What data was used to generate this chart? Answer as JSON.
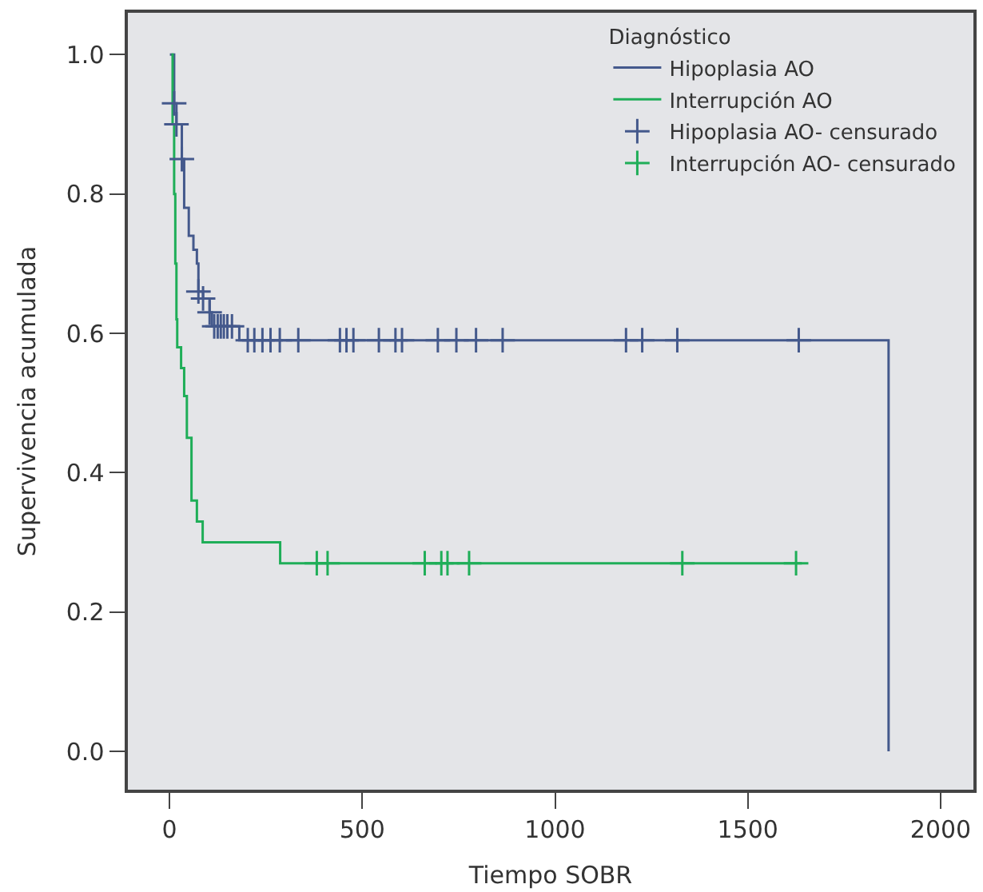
{
  "chart_data": {
    "type": "step",
    "xlabel": "Tiempo SOBR",
    "ylabel": "Supervivencia acumulada",
    "legend_title": "Diagnóstico",
    "legend": "top right",
    "grid": false,
    "xlim": [
      -108,
      2085
    ],
    "ylim": [
      -0.055,
      1.06
    ],
    "xticks": [
      0,
      500,
      1000,
      1500,
      2000
    ],
    "yticks": [
      {
        "value": 0,
        "label": "0.0"
      },
      {
        "value": 0.2,
        "label": "0.2"
      },
      {
        "value": 0.4,
        "label": "0.4"
      },
      {
        "value": 0.6,
        "label": "0.6"
      },
      {
        "value": 0.8,
        "label": "0.8"
      },
      {
        "value": 1,
        "label": "1.0"
      }
    ],
    "series": [
      {
        "name": "Hipoplasia AO",
        "color": "#44598c",
        "marker": "none",
        "x": [
          1,
          12,
          18,
          32,
          38,
          50,
          62,
          71,
          75,
          87,
          104,
          110,
          181,
          1865
        ],
        "values": [
          1.0,
          0.93,
          0.9,
          0.85,
          0.78,
          0.74,
          0.72,
          0.7,
          0.66,
          0.65,
          0.63,
          0.61,
          0.59,
          0.0
        ]
      },
      {
        "name": "Interrupción AO",
        "color": "#1fae58",
        "marker": "none",
        "x": [
          5,
          8,
          12,
          15,
          18,
          20,
          30,
          38,
          45,
          57,
          71,
          86,
          287,
          1640
        ],
        "values": [
          1.0,
          0.9,
          0.8,
          0.7,
          0.62,
          0.58,
          0.55,
          0.51,
          0.45,
          0.36,
          0.33,
          0.3,
          0.27,
          0.27
        ]
      },
      {
        "name": "Hipoplasia AO- censurado",
        "type": "scatter",
        "color": "#44598c",
        "marker": "cross",
        "x": [
          12,
          18,
          32,
          75,
          87,
          104,
          116,
          125,
          133,
          141,
          150,
          162,
          203,
          220,
          241,
          262,
          286,
          334,
          442,
          459,
          477,
          543,
          586,
          603,
          696,
          744,
          795,
          864,
          1184,
          1226,
          1317,
          1632
        ],
        "values": [
          0.93,
          0.9,
          0.85,
          0.66,
          0.65,
          0.63,
          0.61,
          0.61,
          0.61,
          0.61,
          0.61,
          0.61,
          0.59,
          0.59,
          0.59,
          0.59,
          0.59,
          0.59,
          0.59,
          0.59,
          0.59,
          0.59,
          0.59,
          0.59,
          0.59,
          0.59,
          0.59,
          0.59,
          0.59,
          0.59,
          0.59,
          0.59
        ]
      },
      {
        "name": "Interrupción AO- censurado",
        "type": "scatter",
        "color": "#1fae58",
        "marker": "cross",
        "x": [
          382,
          410,
          662,
          705,
          721,
          777,
          1330,
          1625
        ],
        "values": [
          0.27,
          0.27,
          0.27,
          0.27,
          0.27,
          0.27,
          0.27,
          0.27
        ]
      }
    ]
  }
}
